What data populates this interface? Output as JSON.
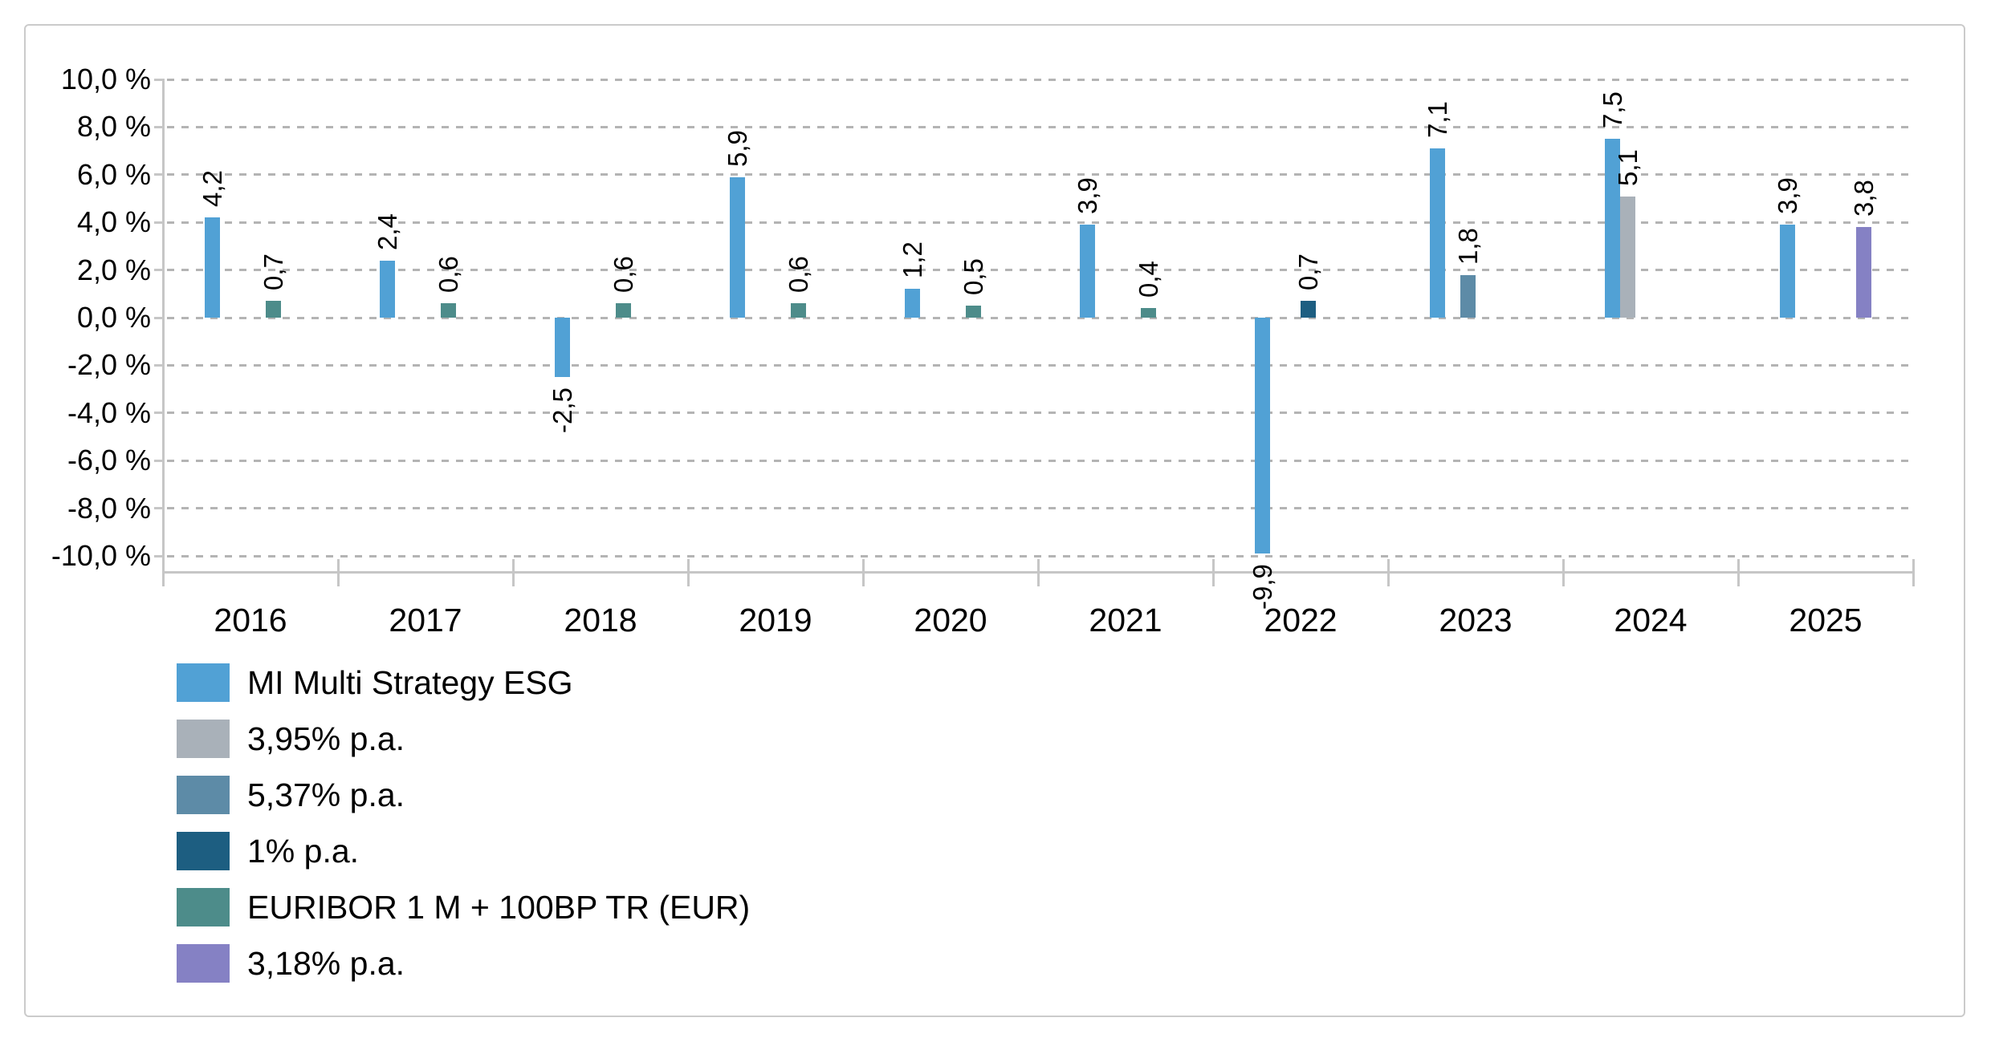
{
  "chart_data": {
    "type": "bar",
    "title": "",
    "categories": [
      "2016",
      "2017",
      "2018",
      "2019",
      "2020",
      "2021",
      "2022",
      "2023",
      "2024",
      "2025"
    ],
    "value_suffix": "%",
    "decimal_separator": ",",
    "grid": "dashed-horizontal",
    "legend_position": "bottom-left",
    "y_axis": {
      "min": -10,
      "max": 10,
      "step": 2,
      "tick_labels": [
        "10,0 %",
        "8,0 %",
        "6,0 %",
        "4,0 %",
        "2,0 %",
        "0,0 %",
        "-2,0 %",
        "-4,0 %",
        "-6,0 %",
        "-8,0 %",
        "-10,0 %"
      ]
    },
    "colors": {
      "grid": "#b4b4b4",
      "axis": "#c6c6c6",
      "text": "#000000",
      "frame_border": "#cbcbcb"
    },
    "series": [
      {
        "name": "MI Multi Strategy ESG",
        "color": "#51A1D5",
        "values": [
          4.2,
          2.4,
          -2.5,
          5.9,
          1.2,
          3.9,
          -9.9,
          7.1,
          7.5,
          3.9
        ],
        "labels": [
          "4,2",
          "2,4",
          "-2,5",
          "5,9",
          "1,2",
          "3,9",
          "-9,9",
          "7,1",
          "7,5",
          "3,9"
        ]
      },
      {
        "name": "3,95% p.a.",
        "color": "#A9B1B9",
        "values": [
          null,
          null,
          null,
          null,
          null,
          null,
          null,
          null,
          5.1,
          null
        ],
        "labels": [
          null,
          null,
          null,
          null,
          null,
          null,
          null,
          null,
          "5,1",
          null
        ]
      },
      {
        "name": "5,37% p.a.",
        "color": "#5D8BA7",
        "values": [
          null,
          null,
          null,
          null,
          null,
          null,
          null,
          1.8,
          null,
          null
        ],
        "labels": [
          null,
          null,
          null,
          null,
          null,
          null,
          null,
          "1,8",
          null,
          null
        ]
      },
      {
        "name": "1% p.a.",
        "color": "#1D5E81",
        "values": [
          null,
          null,
          null,
          null,
          null,
          null,
          0.7,
          null,
          null,
          null
        ],
        "labels": [
          null,
          null,
          null,
          null,
          null,
          null,
          "0,7",
          null,
          null,
          null
        ]
      },
      {
        "name": "EURIBOR 1 M + 100BP TR (EUR)",
        "color": "#4D8C8A",
        "values": [
          0.7,
          0.6,
          0.6,
          0.6,
          0.5,
          0.4,
          null,
          null,
          null,
          null
        ],
        "labels": [
          "0,7",
          "0,6",
          "0,6",
          "0,6",
          "0,5",
          "0,4",
          null,
          null,
          null,
          null
        ]
      },
      {
        "name": "3,18% p.a.",
        "color": "#8581C4",
        "values": [
          null,
          null,
          null,
          null,
          null,
          null,
          null,
          null,
          null,
          3.8
        ],
        "labels": [
          null,
          null,
          null,
          null,
          null,
          null,
          null,
          null,
          null,
          "3,8"
        ]
      }
    ]
  }
}
